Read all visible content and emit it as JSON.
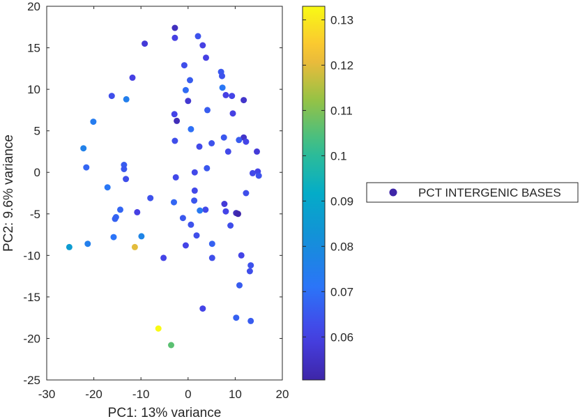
{
  "chart_data": {
    "type": "scatter",
    "xlabel": "PC1: 13% variance",
    "ylabel": "PC2: 9.6% variance",
    "xlim": [
      -30,
      20
    ],
    "ylim": [
      -25,
      20
    ],
    "xticks": [
      -30,
      -20,
      -10,
      0,
      10,
      20
    ],
    "yticks": [
      -25,
      -20,
      -15,
      -10,
      -5,
      0,
      5,
      10,
      15,
      20
    ],
    "grid": false,
    "legend": {
      "placement": "right",
      "entries": [
        "PCT INTERGENIC BASES"
      ]
    },
    "colorbar": {
      "colormap": "parula",
      "range": [
        0.0505,
        0.133
      ],
      "ticks": [
        0.06,
        0.07,
        0.08,
        0.09,
        0.1,
        0.11,
        0.12,
        0.13
      ],
      "tick_labels": [
        "0.06",
        "0.07",
        "0.08",
        "0.09",
        "0.1",
        "0.11",
        "0.12",
        "0.13"
      ]
    },
    "points": [
      {
        "x": -2.8,
        "y": 17.4,
        "c": 0.054
      },
      {
        "x": -2.8,
        "y": 16.2,
        "c": 0.06
      },
      {
        "x": 2.1,
        "y": 16.4,
        "c": 0.064
      },
      {
        "x": -9.2,
        "y": 15.5,
        "c": 0.058
      },
      {
        "x": 3.1,
        "y": 15.3,
        "c": 0.06
      },
      {
        "x": 3.8,
        "y": 13.8,
        "c": 0.06
      },
      {
        "x": -0.8,
        "y": 12.9,
        "c": 0.063
      },
      {
        "x": 7.0,
        "y": 12.1,
        "c": 0.065
      },
      {
        "x": 7.2,
        "y": 11.6,
        "c": 0.064
      },
      {
        "x": -11.8,
        "y": 11.4,
        "c": 0.06
      },
      {
        "x": 0.4,
        "y": 11.1,
        "c": 0.066
      },
      {
        "x": 7.3,
        "y": 10.2,
        "c": 0.072
      },
      {
        "x": -0.5,
        "y": 9.9,
        "c": 0.069
      },
      {
        "x": 8.0,
        "y": 9.3,
        "c": 0.06
      },
      {
        "x": 9.3,
        "y": 9.2,
        "c": 0.061
      },
      {
        "x": -16.2,
        "y": 9.2,
        "c": 0.063
      },
      {
        "x": -13.1,
        "y": 8.8,
        "c": 0.075
      },
      {
        "x": 11.8,
        "y": 8.7,
        "c": 0.056
      },
      {
        "x": 0.0,
        "y": 8.6,
        "c": 0.057
      },
      {
        "x": 4.1,
        "y": 7.5,
        "c": 0.066
      },
      {
        "x": -2.9,
        "y": 7.0,
        "c": 0.061
      },
      {
        "x": 9.5,
        "y": 7.1,
        "c": 0.06
      },
      {
        "x": -2.4,
        "y": 6.2,
        "c": 0.053
      },
      {
        "x": -20.1,
        "y": 6.1,
        "c": 0.074
      },
      {
        "x": 0.6,
        "y": 5.2,
        "c": 0.07
      },
      {
        "x": 7.6,
        "y": 4.2,
        "c": 0.065
      },
      {
        "x": 11.8,
        "y": 4.2,
        "c": 0.056
      },
      {
        "x": 10.8,
        "y": 3.9,
        "c": 0.066
      },
      {
        "x": 12.3,
        "y": 3.7,
        "c": 0.061
      },
      {
        "x": -2.8,
        "y": 3.8,
        "c": 0.063
      },
      {
        "x": 5.0,
        "y": 3.5,
        "c": 0.064
      },
      {
        "x": 2.4,
        "y": 3.1,
        "c": 0.062
      },
      {
        "x": -22.2,
        "y": 2.9,
        "c": 0.076
      },
      {
        "x": 8.5,
        "y": 2.5,
        "c": 0.062
      },
      {
        "x": 14.6,
        "y": 2.5,
        "c": 0.058
      },
      {
        "x": -21.6,
        "y": 0.6,
        "c": 0.068
      },
      {
        "x": -13.6,
        "y": 0.9,
        "c": 0.066
      },
      {
        "x": -13.6,
        "y": 0.4,
        "c": 0.065
      },
      {
        "x": 4.0,
        "y": 0.5,
        "c": 0.065
      },
      {
        "x": 1.4,
        "y": 0.0,
        "c": 0.062
      },
      {
        "x": 14.8,
        "y": 0.1,
        "c": 0.061
      },
      {
        "x": 13.7,
        "y": -0.1,
        "c": 0.062
      },
      {
        "x": 15.0,
        "y": -0.4,
        "c": 0.064
      },
      {
        "x": -2.6,
        "y": -0.6,
        "c": 0.062
      },
      {
        "x": -13.2,
        "y": -0.8,
        "c": 0.063
      },
      {
        "x": -17.1,
        "y": -1.8,
        "c": 0.072
      },
      {
        "x": 1.4,
        "y": -2.2,
        "c": 0.062
      },
      {
        "x": 12.3,
        "y": -2.5,
        "c": 0.063
      },
      {
        "x": -8.0,
        "y": -3.1,
        "c": 0.064
      },
      {
        "x": 1.3,
        "y": -3.4,
        "c": 0.065
      },
      {
        "x": -3.0,
        "y": -3.6,
        "c": 0.068
      },
      {
        "x": 7.7,
        "y": -3.8,
        "c": 0.058
      },
      {
        "x": -14.4,
        "y": -4.5,
        "c": 0.068
      },
      {
        "x": 3.7,
        "y": -4.5,
        "c": 0.062
      },
      {
        "x": 2.5,
        "y": -4.6,
        "c": 0.073
      },
      {
        "x": 8.0,
        "y": -4.7,
        "c": 0.061
      },
      {
        "x": -10.8,
        "y": -4.8,
        "c": 0.06
      },
      {
        "x": 10.2,
        "y": -4.9,
        "c": 0.054
      },
      {
        "x": 10.6,
        "y": -5.0,
        "c": 0.051
      },
      {
        "x": -15.3,
        "y": -5.4,
        "c": 0.068
      },
      {
        "x": -15.5,
        "y": -5.6,
        "c": 0.067
      },
      {
        "x": -1.1,
        "y": -5.5,
        "c": 0.065
      },
      {
        "x": 0.6,
        "y": -6.3,
        "c": 0.064
      },
      {
        "x": 9.0,
        "y": -6.4,
        "c": 0.063
      },
      {
        "x": 1.8,
        "y": -7.6,
        "c": 0.063
      },
      {
        "x": -9.9,
        "y": -7.7,
        "c": 0.077
      },
      {
        "x": -15.8,
        "y": -7.8,
        "c": 0.071
      },
      {
        "x": 5.1,
        "y": -8.6,
        "c": 0.067
      },
      {
        "x": -21.3,
        "y": -8.6,
        "c": 0.075
      },
      {
        "x": -0.5,
        "y": -8.8,
        "c": 0.061
      },
      {
        "x": -25.2,
        "y": -9.0,
        "c": 0.086
      },
      {
        "x": -11.3,
        "y": -9.0,
        "c": 0.12
      },
      {
        "x": 11.3,
        "y": -10.0,
        "c": 0.061
      },
      {
        "x": -5.2,
        "y": -10.3,
        "c": 0.061
      },
      {
        "x": 5.1,
        "y": -10.3,
        "c": 0.063
      },
      {
        "x": 13.3,
        "y": -11.2,
        "c": 0.064
      },
      {
        "x": 13.1,
        "y": -11.9,
        "c": 0.063
      },
      {
        "x": 10.9,
        "y": -13.6,
        "c": 0.066
      },
      {
        "x": 3.1,
        "y": -16.4,
        "c": 0.061
      },
      {
        "x": 10.2,
        "y": -17.5,
        "c": 0.067
      },
      {
        "x": 13.3,
        "y": -17.9,
        "c": 0.066
      },
      {
        "x": -6.3,
        "y": -18.8,
        "c": 0.133
      },
      {
        "x": -3.6,
        "y": -20.8,
        "c": 0.106
      }
    ]
  }
}
